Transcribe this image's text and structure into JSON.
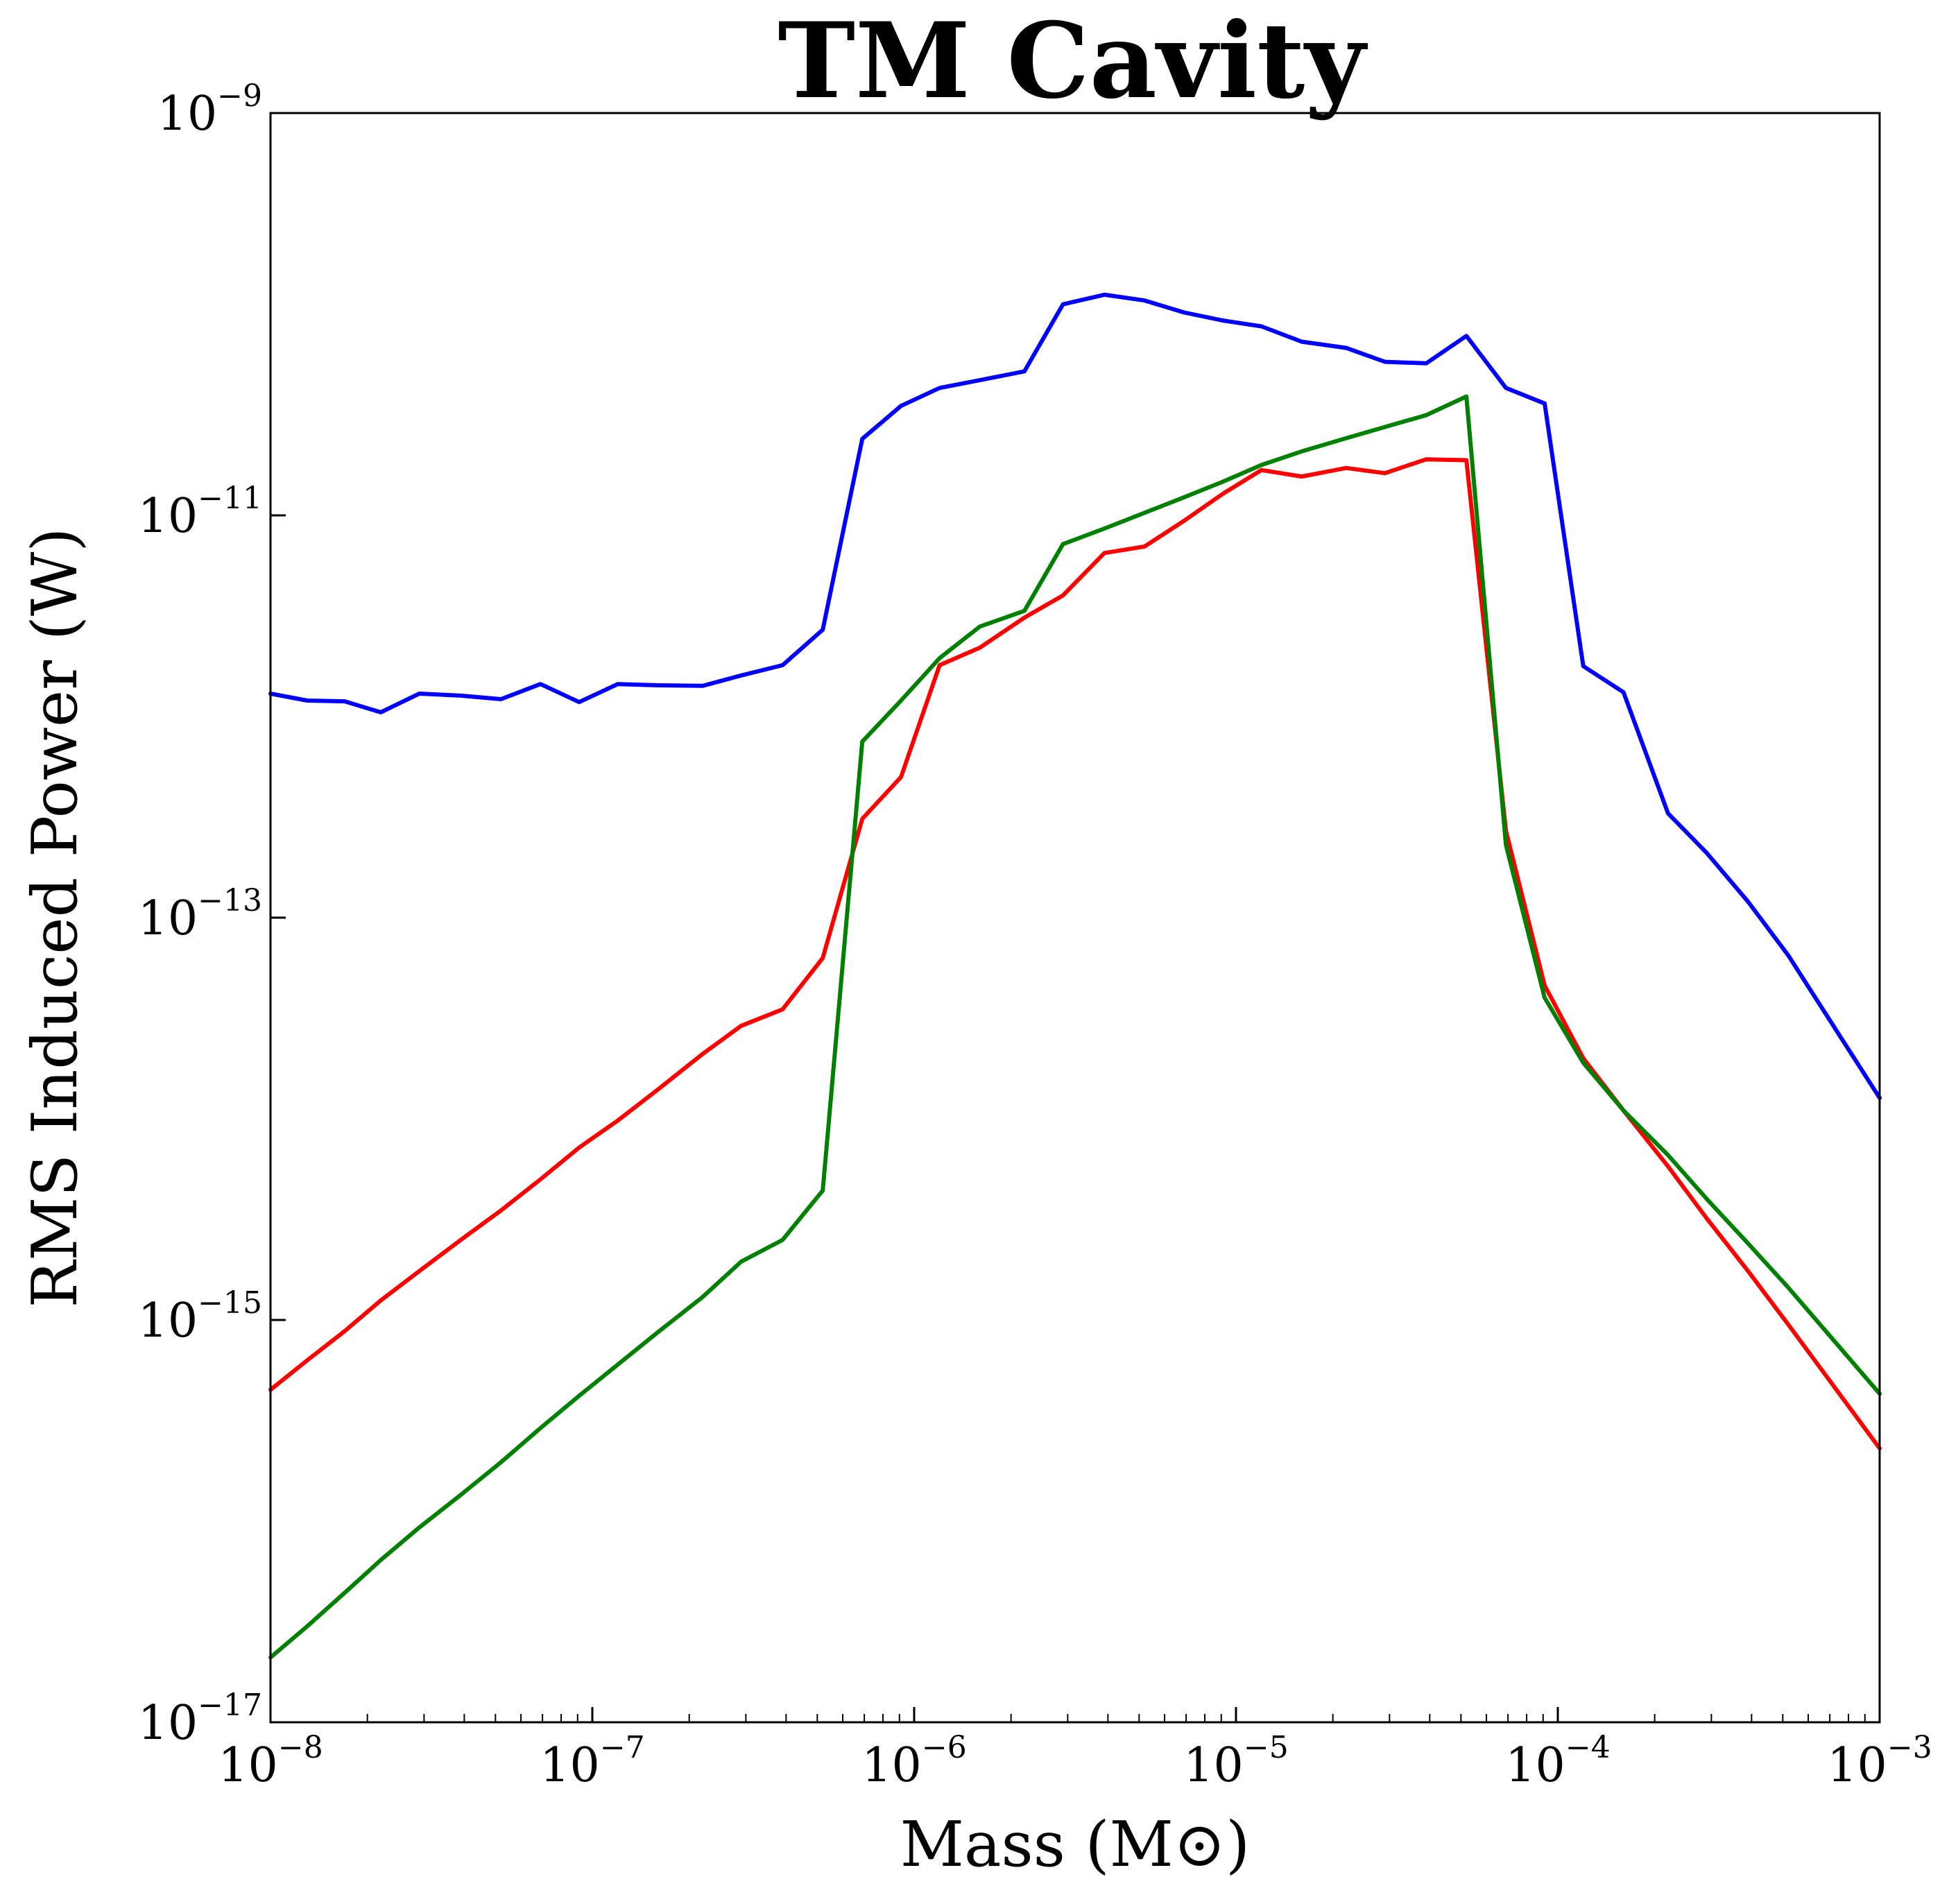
{
  "chart_data": {
    "type": "line",
    "title": "TM Cavity",
    "xlabel": "Mass (M⊙)",
    "ylabel": "RMS Induced Power (W)",
    "xscale": "log",
    "yscale": "log",
    "xlim": [
      1e-08,
      0.001
    ],
    "ylim": [
      1e-17,
      1e-09
    ],
    "grid": false,
    "legend": "none",
    "x_ticks": [
      {
        "mantissa": "10",
        "exp": "−8",
        "value": 1e-08
      },
      {
        "mantissa": "10",
        "exp": "−7",
        "value": 1e-07
      },
      {
        "mantissa": "10",
        "exp": "−6",
        "value": 1e-06
      },
      {
        "mantissa": "10",
        "exp": "−5",
        "value": 1e-05
      },
      {
        "mantissa": "10",
        "exp": "−4",
        "value": 0.0001
      },
      {
        "mantissa": "10",
        "exp": "−3",
        "value": 0.001
      }
    ],
    "y_ticks": [
      {
        "mantissa": "10",
        "exp": "−9",
        "value": 1e-09
      },
      {
        "mantissa": "10",
        "exp": "−11",
        "value": 1e-11
      },
      {
        "mantissa": "10",
        "exp": "−13",
        "value": 1e-13
      },
      {
        "mantissa": "10",
        "exp": "−15",
        "value": 1e-15
      },
      {
        "mantissa": "10",
        "exp": "−17",
        "value": 1e-17
      }
    ],
    "series": [
      {
        "color": "#0000ff",
        "points": [
          [
            1e-08,
            1.3e-12
          ],
          [
            1.3e-08,
            1.2e-12
          ],
          [
            1.7e-08,
            1.19e-12
          ],
          [
            2.2e-08,
            1.05e-12
          ],
          [
            2.9e-08,
            1.3e-12
          ],
          [
            3.9e-08,
            1.27e-12
          ],
          [
            5.2e-08,
            1.22e-12
          ],
          [
            6.9e-08,
            1.45e-12
          ],
          [
            9.1e-08,
            1.18e-12
          ],
          [
            1.2e-07,
            1.45e-12
          ],
          [
            1.6e-07,
            1.43e-12
          ],
          [
            2.2e-07,
            1.42e-12
          ],
          [
            2.9e-07,
            1.6e-12
          ],
          [
            3.9e-07,
            1.8e-12
          ],
          [
            5.2e-07,
            2.7e-12
          ],
          [
            6.9e-07,
            2.4e-11
          ],
          [
            9.1e-07,
            3.5e-11
          ],
          [
            1.2e-06,
            4.3e-11
          ],
          [
            1.6e-06,
            4.7e-11
          ],
          [
            2.2e-06,
            5.2e-11
          ],
          [
            2.9e-06,
            1.12e-10
          ],
          [
            3.9e-06,
            1.25e-10
          ],
          [
            5.2e-06,
            1.17e-10
          ],
          [
            6.9e-06,
            1.02e-10
          ],
          [
            9.1e-06,
            9.3e-11
          ],
          [
            1.2e-05,
            8.7e-11
          ],
          [
            1.6e-05,
            7.3e-11
          ],
          [
            2.2e-05,
            6.8e-11
          ],
          [
            2.9e-05,
            5.8e-11
          ],
          [
            3.9e-05,
            5.7e-11
          ],
          [
            5.2e-05,
            7.8e-11
          ],
          [
            6.9e-05,
            4.3e-11
          ],
          [
            9.1e-05,
            3.6e-11
          ],
          [
            0.00012,
            1.78e-12
          ],
          [
            0.00016,
            1.32e-12
          ],
          [
            0.00022,
            3.3e-13
          ],
          [
            0.00029,
            2.1e-13
          ],
          [
            0.00039,
            1.2e-13
          ],
          [
            0.00052,
            6.5e-14
          ],
          [
            0.001,
            1.27e-14
          ]
        ]
      },
      {
        "color": "#ff0000",
        "points": [
          [
            1e-08,
            4.5e-16
          ],
          [
            1.3e-08,
            6.3e-16
          ],
          [
            1.7e-08,
            8.8e-16
          ],
          [
            2.2e-08,
            1.25e-15
          ],
          [
            2.9e-08,
            1.75e-15
          ],
          [
            3.9e-08,
            2.5e-15
          ],
          [
            5.2e-08,
            3.5e-15
          ],
          [
            6.9e-08,
            5e-15
          ],
          [
            9.1e-08,
            7.2e-15
          ],
          [
            1.2e-07,
            9.8e-15
          ],
          [
            1.6e-07,
            1.4e-14
          ],
          [
            2.2e-07,
            2.1e-14
          ],
          [
            2.9e-07,
            2.9e-14
          ],
          [
            3.9e-07,
            3.5e-14
          ],
          [
            5.2e-07,
            6.3e-14
          ],
          [
            6.9e-07,
            3.1e-13
          ],
          [
            9.1e-07,
            5e-13
          ],
          [
            1.2e-06,
            1.8e-12
          ],
          [
            1.6e-06,
            2.2e-12
          ],
          [
            2.2e-06,
            3.1e-12
          ],
          [
            2.9e-06,
            4e-12
          ],
          [
            3.9e-06,
            6.5e-12
          ],
          [
            5.2e-06,
            7e-12
          ],
          [
            6.9e-06,
            9.4e-12
          ],
          [
            9.1e-06,
            1.28e-11
          ],
          [
            1.2e-05,
            1.68e-11
          ],
          [
            1.6e-05,
            1.56e-11
          ],
          [
            2.2e-05,
            1.72e-11
          ],
          [
            2.9e-05,
            1.62e-11
          ],
          [
            3.9e-05,
            1.9e-11
          ],
          [
            5.2e-05,
            1.88e-11
          ],
          [
            6.9e-05,
            2.7e-13
          ],
          [
            9.1e-05,
            4.6e-14
          ],
          [
            0.00012,
            2e-14
          ],
          [
            0.00016,
            1.1e-14
          ],
          [
            0.00022,
            5.8e-15
          ],
          [
            0.00029,
            3.2e-15
          ],
          [
            0.00039,
            1.75e-15
          ],
          [
            0.00052,
            9.5e-16
          ],
          [
            0.001,
            2.3e-16
          ]
        ]
      },
      {
        "color": "#008000",
        "points": [
          [
            1e-08,
            2.1e-17
          ],
          [
            1.3e-08,
            3e-17
          ],
          [
            1.7e-08,
            4.4e-17
          ],
          [
            2.2e-08,
            6.4e-17
          ],
          [
            2.9e-08,
            9.3e-17
          ],
          [
            3.9e-08,
            1.35e-16
          ],
          [
            5.2e-08,
            1.96e-16
          ],
          [
            6.9e-08,
            2.9e-16
          ],
          [
            9.1e-08,
            4.2e-16
          ],
          [
            1.2e-07,
            6e-16
          ],
          [
            1.6e-07,
            8.7e-16
          ],
          [
            2.2e-07,
            1.3e-15
          ],
          [
            2.9e-07,
            1.95e-15
          ],
          [
            3.9e-07,
            2.5e-15
          ],
          [
            5.2e-07,
            4.4e-15
          ],
          [
            6.9e-07,
            7.5e-13
          ],
          [
            9.1e-07,
            1.2e-12
          ],
          [
            1.2e-06,
            1.95e-12
          ],
          [
            1.6e-06,
            2.8e-12
          ],
          [
            2.2e-06,
            3.35e-12
          ],
          [
            2.9e-06,
            7.2e-12
          ],
          [
            3.9e-06,
            8.6e-12
          ],
          [
            5.2e-06,
            1.03e-11
          ],
          [
            6.9e-06,
            1.23e-11
          ],
          [
            9.1e-06,
            1.47e-11
          ],
          [
            1.2e-05,
            1.78e-11
          ],
          [
            1.6e-05,
            2.08e-11
          ],
          [
            2.2e-05,
            2.42e-11
          ],
          [
            2.9e-05,
            2.75e-11
          ],
          [
            3.9e-05,
            3.15e-11
          ],
          [
            5.2e-05,
            3.9e-11
          ],
          [
            6.9e-05,
            2.3e-13
          ],
          [
            9.1e-05,
            4e-14
          ],
          [
            0.00012,
            1.9e-14
          ],
          [
            0.00016,
            1.1e-14
          ],
          [
            0.00022,
            6.6e-15
          ],
          [
            0.00029,
            4e-15
          ],
          [
            0.00039,
            2.4e-15
          ],
          [
            0.00052,
            1.45e-15
          ],
          [
            0.001,
            4.3e-16
          ]
        ]
      }
    ]
  }
}
